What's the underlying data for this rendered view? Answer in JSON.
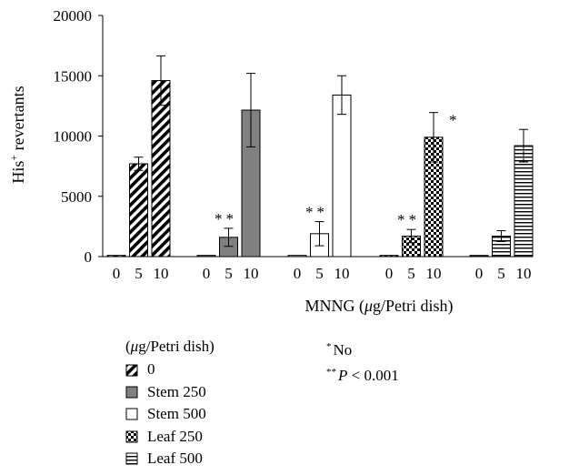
{
  "chart_data": {
    "type": "bar",
    "ylabel": "His⁺ revertants",
    "xlabel": "MNNG (μg/Petri dish)",
    "ylim": [
      0,
      20000
    ],
    "yticks": [
      0,
      5000,
      10000,
      15000,
      20000
    ],
    "grid": false,
    "legend_placement": "bottom",
    "legend_title": "(μg/Petri dish)",
    "categories": [
      "0",
      "5",
      "10"
    ],
    "series": [
      {
        "name": "0",
        "pattern": "diagonal-stripes",
        "values": [
          100,
          7700,
          14600
        ],
        "errors": [
          0,
          550,
          2050
        ]
      },
      {
        "name": "Stem 250",
        "pattern": "solid-gray",
        "color": "#808080",
        "values": [
          100,
          1600,
          12150
        ],
        "errors": [
          0,
          750,
          3050
        ]
      },
      {
        "name": "Stem 500",
        "pattern": "white",
        "values": [
          100,
          1900,
          13400
        ],
        "errors": [
          0,
          1000,
          1600
        ]
      },
      {
        "name": "Leaf 250",
        "pattern": "checker",
        "values": [
          100,
          1700,
          9900
        ],
        "errors": [
          0,
          550,
          2050
        ]
      },
      {
        "name": "Leaf 500",
        "pattern": "horizontal-stripes",
        "values": [
          100,
          1700,
          9200
        ],
        "errors": [
          0,
          450,
          1350
        ]
      }
    ],
    "annotations": [
      {
        "series": 1,
        "category": 1,
        "text": "**"
      },
      {
        "series": 2,
        "category": 1,
        "text": "**"
      },
      {
        "series": 3,
        "category": 1,
        "text": "**"
      },
      {
        "series": 3,
        "category": 2,
        "text": "*"
      }
    ]
  },
  "notes": {
    "no_mark": "*",
    "no_text": "No",
    "p_mark": "**",
    "p_symbol": "P",
    "p_text": " < 0.001"
  }
}
